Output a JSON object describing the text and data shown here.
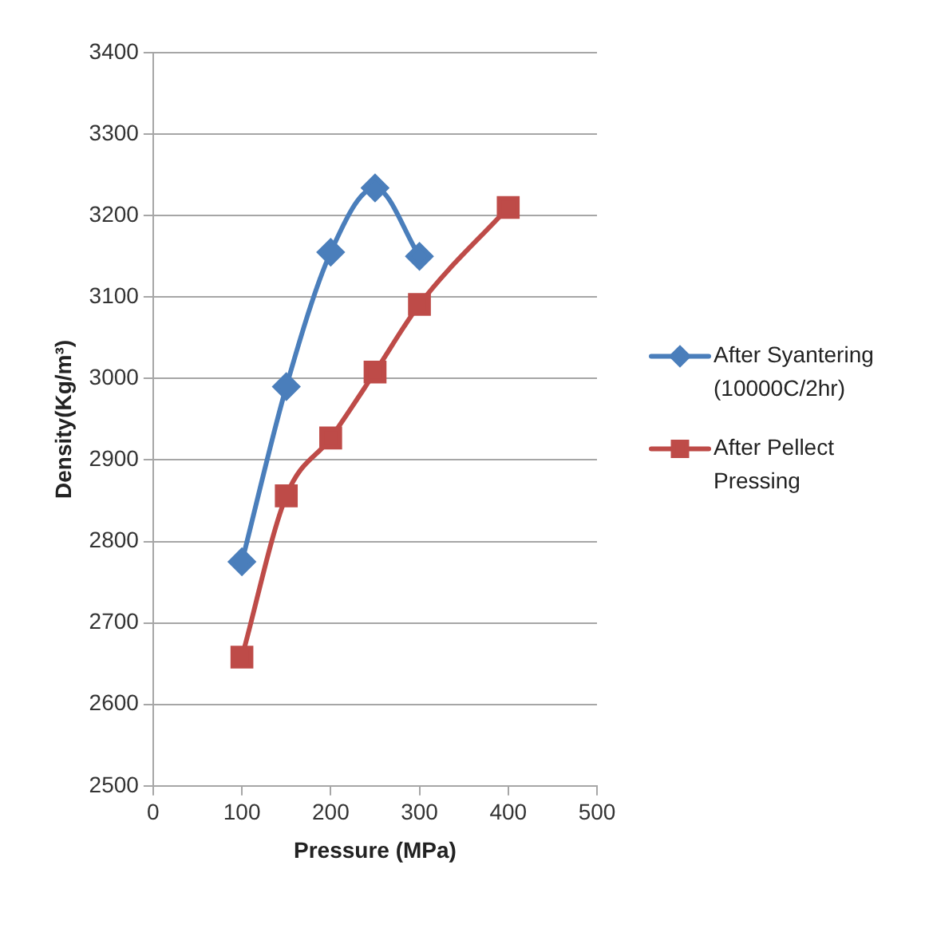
{
  "chart_data": {
    "type": "line",
    "xlabel": "Pressure (MPa)",
    "ylabel": "Density(Kg/m³)",
    "xlim": [
      0,
      500
    ],
    "xticks": [
      0,
      100,
      200,
      300,
      400,
      500
    ],
    "ylim": [
      2500,
      3400
    ],
    "yticks": [
      2500,
      2600,
      2700,
      2800,
      2900,
      3000,
      3100,
      3200,
      3300,
      3400
    ],
    "grid": "y",
    "legend": "right",
    "series": [
      {
        "name": "After Syantering (10000C/2hr)",
        "color": "#4a7ebb",
        "marker": "diamond",
        "x": [
          100,
          150,
          200,
          250,
          300
        ],
        "values": [
          2775,
          2990,
          3155,
          3234,
          3150
        ]
      },
      {
        "name": "After Pellect Pressing",
        "color": "#be4b48",
        "marker": "square",
        "x": [
          100,
          150,
          200,
          250,
          300,
          400
        ],
        "values": [
          2658,
          2856,
          2927,
          3008,
          3091,
          3210
        ]
      }
    ]
  }
}
